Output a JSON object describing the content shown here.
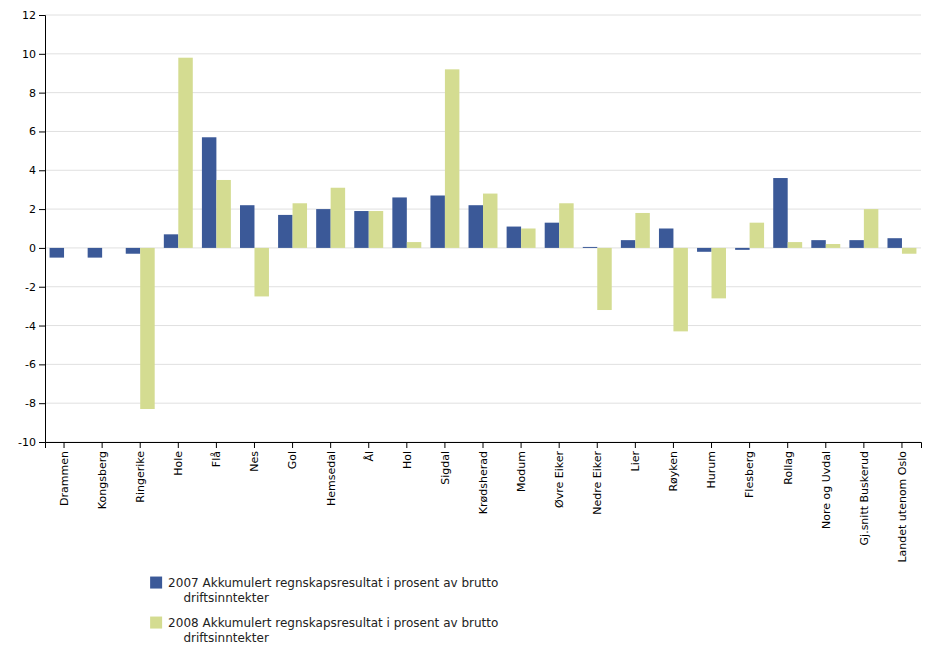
{
  "chart_data": {
    "type": "bar",
    "categories": [
      "Drammen",
      "Kongsberg",
      "Ringerike",
      "Hole",
      "Flå",
      "Nes",
      "Gol",
      "Hemsedal",
      "Ål",
      "Hol",
      "Sigdal",
      "Krødsherad",
      "Modum",
      "Øvre Eiker",
      "Nedre Eiker",
      "Lier",
      "Røyken",
      "Hurum",
      "Flesberg",
      "Rollag",
      "Nore og Uvdal",
      "Gj.snitt Buskerud",
      "Landet utenom Oslo"
    ],
    "series": [
      {
        "name": "2007 Akkumulert regnskapsresultat i prosent av brutto\n    driftsinntekter",
        "color": "#3B5998",
        "values": [
          -0.5,
          -0.5,
          -0.3,
          0.7,
          5.7,
          2.2,
          1.7,
          2.0,
          1.9,
          2.6,
          2.7,
          2.2,
          1.1,
          1.3,
          0.05,
          0.4,
          1.0,
          -0.2,
          -0.1,
          3.6,
          0.4,
          0.4,
          0.5
        ]
      },
      {
        "name": "2008 Akkumulert regnskapsresultat i prosent av brutto\n    driftsinntekter",
        "color": "#D4DC91",
        "values": [
          0.0,
          0.0,
          -8.3,
          9.8,
          3.5,
          -2.5,
          2.3,
          3.1,
          1.9,
          0.3,
          9.2,
          2.8,
          1.0,
          2.3,
          -3.2,
          1.8,
          -4.3,
          -2.6,
          1.3,
          0.3,
          0.2,
          2.0,
          -0.3
        ]
      }
    ],
    "ylim": [
      -10,
      12
    ],
    "yticks": [
      -10,
      -8,
      -6,
      -4,
      -2,
      0,
      2,
      4,
      6,
      8,
      10,
      12
    ],
    "grid": true,
    "legend": "bottom"
  }
}
